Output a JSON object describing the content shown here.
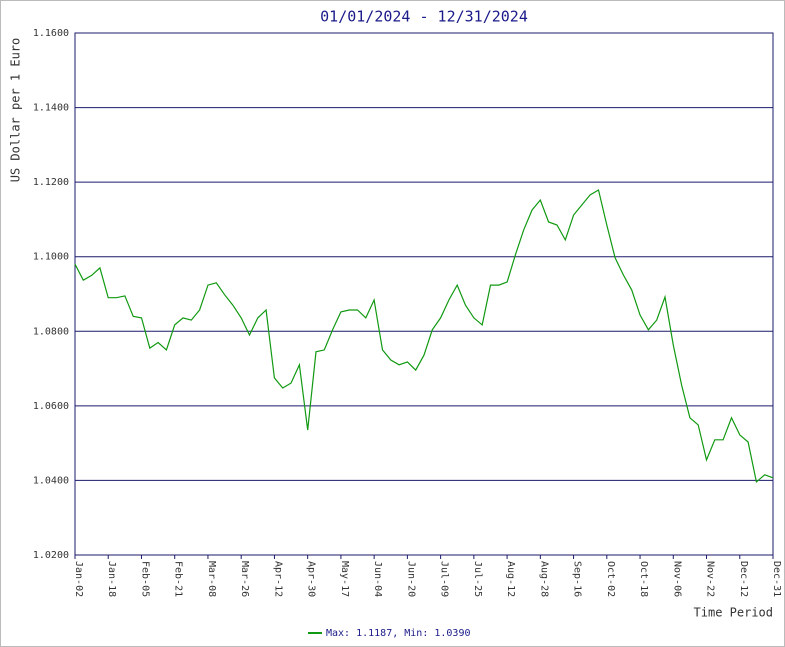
{
  "chart_data": {
    "type": "line",
    "title": "01/01/2024 - 12/31/2024",
    "y_label": "US Dollar per 1 Euro",
    "x_label": "Time Period",
    "categories": [
      "Jan-02",
      null,
      null,
      null,
      "Jan-18",
      null,
      null,
      null,
      "Feb-05",
      null,
      null,
      null,
      "Feb-21",
      null,
      null,
      null,
      "Mar-08",
      null,
      null,
      null,
      "Mar-26",
      null,
      null,
      null,
      "Apr-12",
      null,
      null,
      null,
      "Apr-30",
      null,
      null,
      null,
      "May-17",
      null,
      null,
      null,
      "Jun-04",
      null,
      null,
      null,
      "Jun-20",
      null,
      null,
      null,
      "Jul-09",
      null,
      null,
      null,
      "Jul-25",
      null,
      null,
      null,
      "Aug-12",
      null,
      null,
      null,
      "Aug-28",
      null,
      null,
      null,
      "Sep-16",
      null,
      null,
      null,
      "Oct-02",
      null,
      null,
      null,
      "Oct-18",
      null,
      null,
      null,
      "Nov-06",
      null,
      null,
      null,
      "Nov-22",
      null,
      null,
      null,
      "Dec-12",
      null,
      null,
      null,
      "Dec-31"
    ],
    "series": [
      {
        "name": "Max: 1.1187, Min: 1.0390",
        "color": "#119911",
        "values": [
          1.098,
          1.0937,
          1.095,
          1.097,
          1.089,
          1.089,
          1.0895,
          1.084,
          1.0836,
          1.0755,
          1.077,
          1.075,
          1.0817,
          1.0836,
          1.083,
          1.0857,
          1.0924,
          1.093,
          1.0898,
          1.087,
          1.0836,
          1.079,
          1.0836,
          1.0857,
          1.0675,
          1.0648,
          1.0661,
          1.071,
          1.0535,
          1.0745,
          1.075,
          1.0804,
          1.0852,
          1.0857,
          1.0857,
          1.0836,
          1.0884,
          1.075,
          1.0723,
          1.071,
          1.0718,
          1.0696,
          1.0736,
          1.0804,
          1.0836,
          1.0884,
          1.0924,
          1.087,
          1.0836,
          1.0817,
          1.0924,
          1.0924,
          1.0932,
          1.1005,
          1.1072,
          1.1125,
          1.1152,
          1.1093,
          1.1085,
          1.1045,
          1.1112,
          1.1139,
          1.1166,
          1.1179,
          1.1085,
          1.0997,
          1.0951,
          1.0911,
          1.0844,
          1.0804,
          1.083,
          1.0892,
          1.0763,
          1.0656,
          1.0568,
          1.0549,
          1.0455,
          1.0509,
          1.0509,
          1.0568,
          1.0522,
          1.0503,
          1.0396,
          1.0415,
          1.0407
        ]
      }
    ],
    "ylim": [
      1.02,
      1.16
    ],
    "yticks": [
      {
        "value": 1.02,
        "label": "1.0200"
      },
      {
        "value": 1.04,
        "label": "1.0400"
      },
      {
        "value": 1.06,
        "label": "1.0600"
      },
      {
        "value": 1.08,
        "label": "1.0800"
      },
      {
        "value": 1.1,
        "label": "1.1000"
      },
      {
        "value": 1.12,
        "label": "1.1200"
      },
      {
        "value": 1.14,
        "label": "1.1400"
      },
      {
        "value": 1.16,
        "label": "1.1600"
      }
    ],
    "grid": true,
    "legend": "bottom"
  }
}
